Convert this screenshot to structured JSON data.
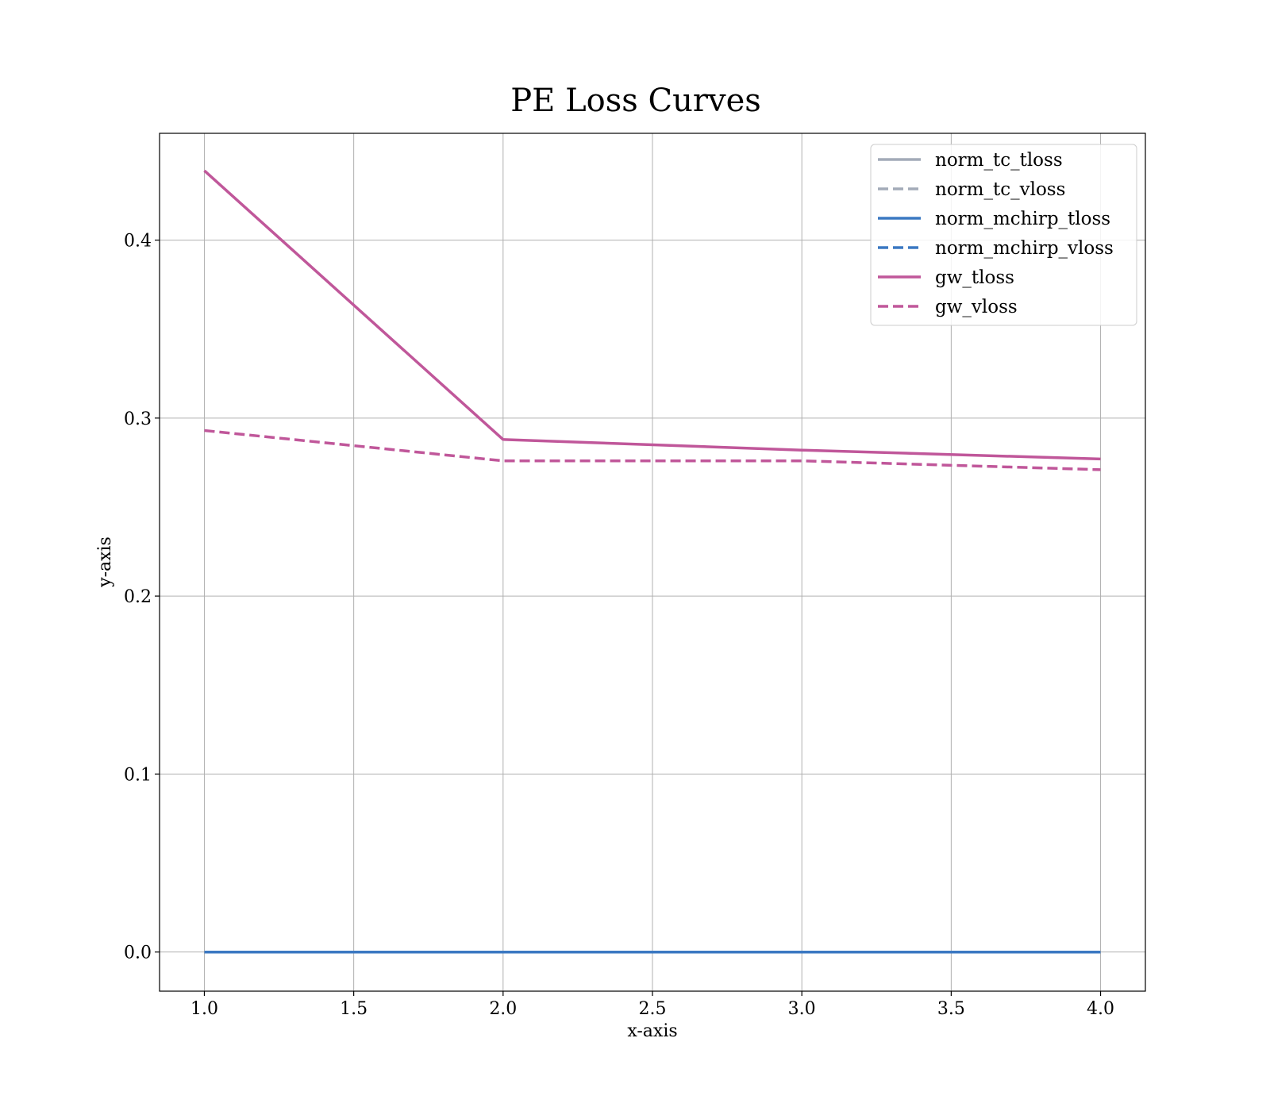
{
  "chart_data": {
    "type": "line",
    "title": "PE Loss Curves",
    "xlabel": "x-axis",
    "ylabel": "y-axis",
    "x": [
      1.0,
      2.0,
      3.0,
      4.0
    ],
    "xlim": [
      0.85,
      4.15
    ],
    "ylim": [
      -0.022,
      0.46
    ],
    "xticks": [
      1.0,
      1.5,
      2.0,
      2.5,
      3.0,
      3.5,
      4.0
    ],
    "xtick_labels": [
      "1.0",
      "1.5",
      "2.0",
      "2.5",
      "3.0",
      "3.5",
      "4.0"
    ],
    "yticks": [
      0.0,
      0.1,
      0.2,
      0.3,
      0.4
    ],
    "ytick_labels": [
      "0.0",
      "0.1",
      "0.2",
      "0.3",
      "0.4"
    ],
    "grid": true,
    "legend_position": "top-right",
    "series": [
      {
        "name": "norm_tc_tloss",
        "values": [
          0.0,
          0.0,
          0.0,
          0.0
        ],
        "color": "#a3abb8",
        "dash": "solid"
      },
      {
        "name": "norm_tc_vloss",
        "values": [
          0.0,
          0.0,
          0.0,
          0.0
        ],
        "color": "#a3abb8",
        "dash": "dashed"
      },
      {
        "name": "norm_mchirp_tloss",
        "values": [
          0.0,
          0.0,
          0.0,
          0.0
        ],
        "color": "#3b78c2",
        "dash": "solid"
      },
      {
        "name": "norm_mchirp_vloss",
        "values": [
          0.0,
          0.0,
          0.0,
          0.0
        ],
        "color": "#3b78c2",
        "dash": "dashed"
      },
      {
        "name": "gw_tloss",
        "values": [
          0.439,
          0.288,
          0.282,
          0.277
        ],
        "color": "#c0579a",
        "dash": "solid"
      },
      {
        "name": "gw_vloss",
        "values": [
          0.293,
          0.276,
          0.276,
          0.271
        ],
        "color": "#c0579a",
        "dash": "dashed"
      }
    ]
  }
}
